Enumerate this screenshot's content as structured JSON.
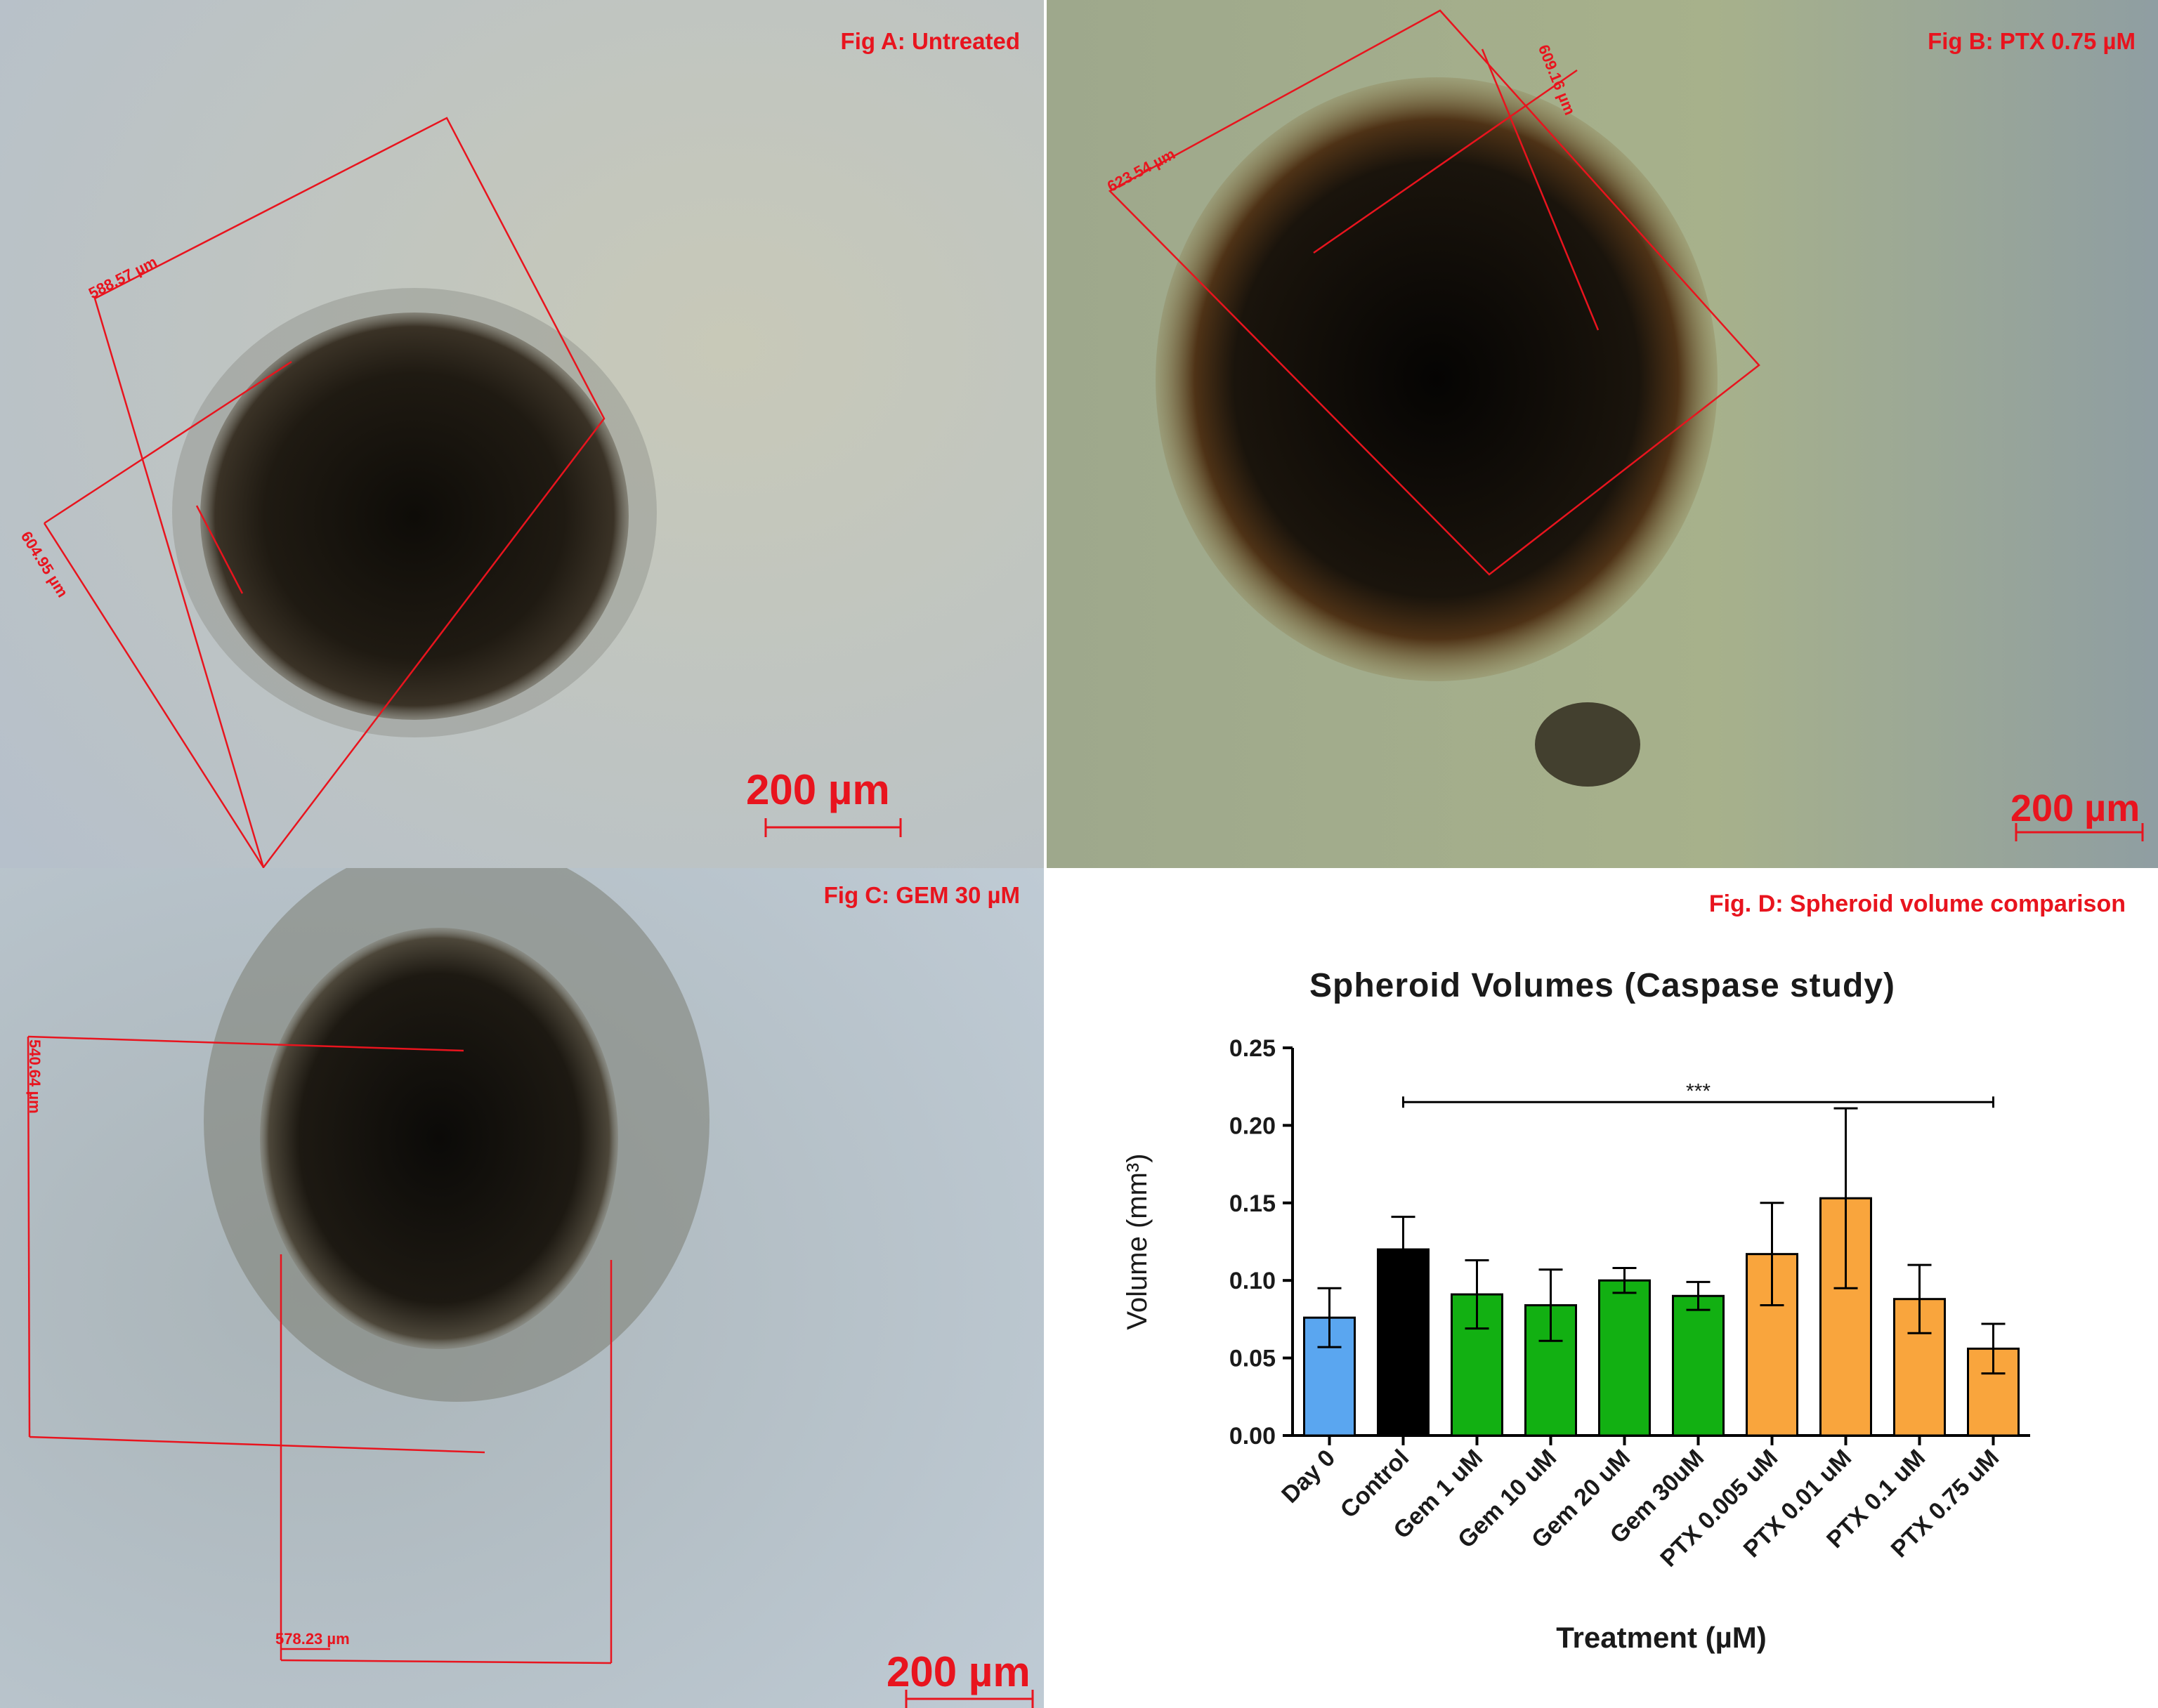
{
  "panels": {
    "a": {
      "label": "Fig A: Untreated",
      "scale_bar": "200 µm",
      "measurements": [
        "588.57 µm",
        "604.95 µm"
      ]
    },
    "b": {
      "label": "Fig B: PTX 0.75 µM",
      "scale_bar": "200 µm",
      "measurements": [
        "623.54 µm",
        "609.16 µm"
      ]
    },
    "c": {
      "label": "Fig C: GEM 30 µM",
      "scale_bar": "200 µm",
      "measurements": [
        "540.64 µm",
        "578.23 µm"
      ]
    },
    "d": {
      "label": "Fig. D: Spheroid volume comparison"
    }
  },
  "colors": {
    "label_red": "#e8141e",
    "blue": "#5aa6f0",
    "black": "#000000",
    "green": "#12b012",
    "orange": "#f9a53d"
  },
  "chart_data": {
    "type": "bar",
    "title": "Spheroid Volumes (Caspase study)",
    "xlabel": "Treatment (µM)",
    "ylabel": "Volume (mm³)",
    "ylim": [
      0,
      0.25
    ],
    "yticks": [
      "0.00",
      "0.05",
      "0.10",
      "0.15",
      "0.20",
      "0.25"
    ],
    "categories": [
      "Day 0",
      "Control",
      "Gem 1 uM",
      "Gem 10 uM",
      "Gem 20 uM",
      "Gem 30uM",
      "PTX 0.005 uM",
      "PTX 0.01 uM",
      "PTX 0.1 uM",
      "PTX 0.75 uM"
    ],
    "values": [
      0.076,
      0.12,
      0.091,
      0.084,
      0.1,
      0.09,
      0.117,
      0.153,
      0.088,
      0.056
    ],
    "errors": [
      0.019,
      0.021,
      0.022,
      0.023,
      0.008,
      0.009,
      0.033,
      0.058,
      0.022,
      0.016
    ],
    "bar_colors": [
      "#5aa6f0",
      "#000000",
      "#12b012",
      "#12b012",
      "#12b012",
      "#12b012",
      "#f9a53d",
      "#f9a53d",
      "#f9a53d",
      "#f9a53d"
    ],
    "significance": {
      "label": "***",
      "from": "Control",
      "to": "PTX 0.75 uM",
      "y": 0.215
    }
  }
}
